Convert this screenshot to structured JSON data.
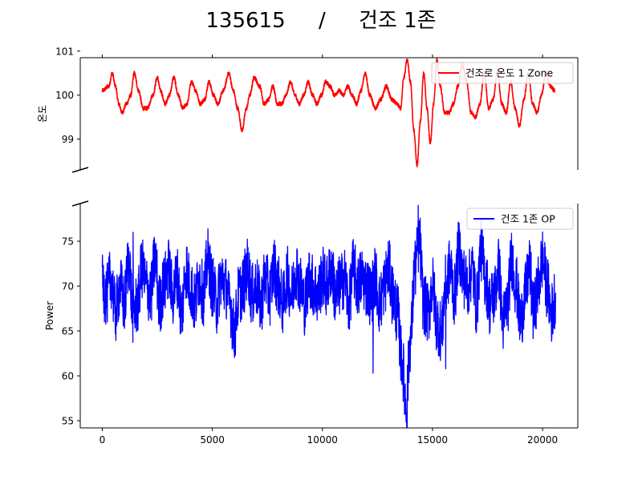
{
  "chart_data": {
    "type": "line",
    "title": "135615     /     건조 1존",
    "layout": "two stacked panels sharing x-axis with broken-axis marks",
    "x_ticks": [
      0,
      5000,
      10000,
      15000,
      20000
    ],
    "xlim": [
      -1000,
      21600
    ],
    "x_range": [
      0,
      20600
    ],
    "panels": [
      {
        "ylabel": "온도",
        "ylim": [
          98.3,
          100.85
        ],
        "y_ticks": [
          99,
          100,
          101
        ],
        "legend": "top-right",
        "series": [
          {
            "name": "건조로 온도 1 Zone",
            "color": "#ff0000",
            "x": [
              0,
              300,
              450,
              600,
              750,
              900,
              1100,
              1300,
              1450,
              1650,
              1850,
              2050,
              2300,
              2500,
              2650,
              2850,
              3050,
              3250,
              3450,
              3650,
              3850,
              4050,
              4250,
              4450,
              4650,
              4850,
              5050,
              5250,
              5500,
              5750,
              5950,
              6150,
              6350,
              6550,
              6700,
              6900,
              7150,
              7350,
              7550,
              7750,
              7950,
              8150,
              8350,
              8550,
              8750,
              8950,
              9150,
              9350,
              9550,
              9750,
              9950,
              10150,
              10350,
              10550,
              10750,
              10950,
              11150,
              11350,
              11550,
              11750,
              11950,
              12150,
              12400,
              12650,
              12900,
              13150,
              13400,
              13550,
              13700,
              13850,
              14000,
              14150,
              14300,
              14450,
              14600,
              14750,
              14900,
              15050,
              15200,
              15350,
              15550,
              15750,
              15950,
              16150,
              16350,
              16550,
              16750,
              16950,
              17150,
              17350,
              17550,
              17750,
              17950,
              18150,
              18350,
              18550,
              18750,
              18950,
              19150,
              19350,
              19550,
              19750,
              19950,
              20150,
              20350,
              20550
            ],
            "y": [
              100.1,
              100.2,
              100.5,
              100.2,
              99.8,
              99.6,
              99.8,
              100.0,
              100.5,
              100.1,
              99.7,
              99.7,
              100.0,
              100.4,
              100.1,
              99.8,
              100.0,
              100.4,
              100.0,
              99.7,
              99.8,
              100.3,
              100.1,
              99.8,
              99.9,
              100.3,
              100.0,
              99.8,
              100.1,
              100.5,
              100.1,
              99.7,
              99.2,
              99.7,
              100.0,
              100.4,
              100.2,
              99.8,
              99.9,
              100.2,
              99.8,
              99.8,
              100.0,
              100.3,
              100.0,
              99.8,
              100.0,
              100.3,
              100.0,
              99.8,
              100.0,
              100.3,
              100.2,
              100.0,
              100.1,
              100.0,
              100.2,
              100.0,
              99.8,
              100.1,
              100.5,
              100.0,
              99.7,
              99.9,
              100.2,
              99.9,
              99.8,
              99.7,
              100.4,
              100.8,
              100.3,
              99.2,
              98.4,
              99.4,
              100.5,
              99.7,
              98.9,
              99.8,
              100.8,
              100.2,
              99.6,
              99.6,
              99.8,
              100.2,
              100.7,
              100.3,
              99.6,
              99.5,
              99.8,
              100.5,
              99.7,
              99.9,
              100.5,
              99.8,
              99.6,
              100.3,
              99.7,
              99.3,
              99.9,
              100.5,
              99.8,
              99.6,
              100.0,
              100.5,
              100.2,
              100.1
            ]
          }
        ]
      },
      {
        "ylabel": "Power",
        "ylim": [
          54.2,
          79.2
        ],
        "y_ticks": [
          55,
          60,
          65,
          70,
          75
        ],
        "legend": "top-right",
        "series": [
          {
            "name": "건조 1존 OP",
            "color": "#0000ff",
            "x": [
              0,
              200,
              400,
              600,
              800,
              1000,
              1200,
              1400,
              1600,
              1800,
              2000,
              2200,
              2400,
              2600,
              2800,
              3000,
              3200,
              3400,
              3600,
              3800,
              4000,
              4200,
              4400,
              4600,
              4800,
              5000,
              5200,
              5400,
              5600,
              5800,
              6000,
              6200,
              6400,
              6600,
              6800,
              7000,
              7200,
              7400,
              7600,
              7800,
              8000,
              8200,
              8400,
              8600,
              8800,
              9000,
              9200,
              9400,
              9600,
              9800,
              10000,
              10200,
              10400,
              10600,
              10800,
              11000,
              11200,
              11400,
              11600,
              11800,
              12000,
              12200,
              12400,
              12600,
              12800,
              13000,
              13200,
              13400,
              13600,
              13800,
              14000,
              14200,
              14400,
              14600,
              14800,
              15000,
              15200,
              15400,
              15600,
              15800,
              16000,
              16200,
              16400,
              16600,
              16800,
              17000,
              17200,
              17400,
              17600,
              17800,
              18000,
              18200,
              18400,
              18600,
              18800,
              19000,
              19200,
              19400,
              19600,
              19800,
              20000,
              20200,
              20400,
              20600
            ],
            "y": [
              70,
              69,
              71,
              67,
              70,
              68,
              73,
              67,
              68,
              72,
              70,
              69,
              73,
              68,
              70,
              72,
              69,
              71,
              67,
              72,
              70,
              68,
              71,
              69,
              73,
              70,
              68,
              71,
              70,
              68,
              65,
              69,
              70,
              72,
              69,
              70,
              68,
              71,
              69,
              72,
              70,
              68,
              71,
              69,
              72,
              70,
              68,
              71,
              70,
              69,
              71,
              70,
              72,
              69,
              70,
              71,
              68,
              72,
              70,
              71,
              70,
              69,
              71,
              68,
              70,
              72,
              69,
              67,
              62,
              57,
              64,
              72,
              75,
              68,
              67,
              70,
              66,
              65,
              70,
              72,
              69,
              74,
              71,
              70,
              72,
              68,
              74,
              71,
              68,
              69,
              72,
              66,
              68,
              73,
              70,
              66,
              69,
              72,
              67,
              70,
              73,
              70,
              67,
              69
            ],
            "noise": 3.5,
            "extremes": [
              [
                5900,
                63
              ],
              [
                12300,
                60.3
              ],
              [
                13850,
                54.2
              ],
              [
                14350,
                79
              ],
              [
                15600,
                60.8
              ],
              [
                1400,
                76
              ]
            ]
          }
        ]
      }
    ]
  }
}
